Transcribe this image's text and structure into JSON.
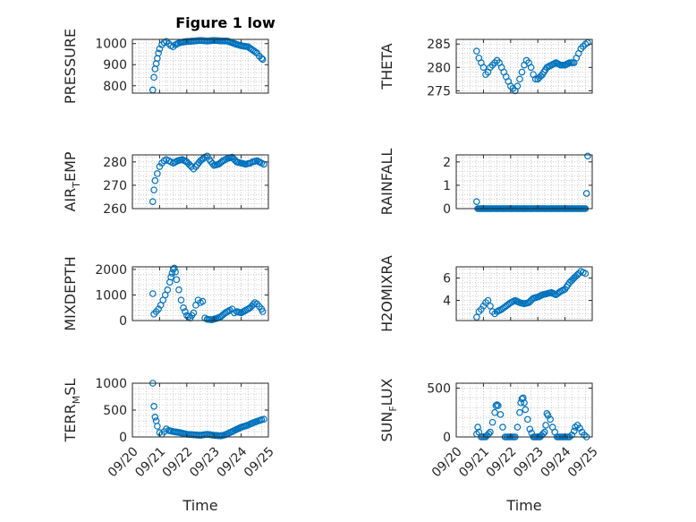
{
  "figure": {
    "title": "Figure 1 low"
  },
  "colors": {
    "marker": "#0072BD",
    "axis": "#262626",
    "grid": "#bfbfbf"
  },
  "chart_data": [
    {
      "type": "scatter",
      "xlabel": "",
      "ylabel": "PRESSURE",
      "ylim": [
        765,
        1020
      ],
      "yticks": [
        800,
        900,
        1000
      ],
      "xlim": [
        "09/20",
        "09/25"
      ],
      "grid": true,
      "points": [
        [
          "09/20 18:00",
          780
        ],
        [
          "09/20 19:00",
          840
        ],
        [
          "09/20 20:00",
          880
        ],
        [
          "09/20 21:00",
          905
        ],
        [
          "09/20 22:00",
          930
        ],
        [
          "09/20 23:00",
          955
        ],
        [
          "09/21 00:00",
          975
        ],
        [
          "09/21 02:00",
          995
        ],
        [
          "09/21 04:00",
          1005
        ],
        [
          "09/21 06:00",
          1010
        ],
        [
          "09/21 08:00",
          1000
        ],
        [
          "09/21 10:00",
          990
        ],
        [
          "09/21 12:00",
          985
        ],
        [
          "09/21 14:00",
          995
        ],
        [
          "09/21 18:00",
          1005
        ],
        [
          "09/22 00:00",
          1010
        ],
        [
          "09/22 06:00",
          1012
        ],
        [
          "09/22 12:00",
          1015
        ],
        [
          "09/22 18:00",
          1012
        ],
        [
          "09/23 00:00",
          1015
        ],
        [
          "09/23 06:00",
          1013
        ],
        [
          "09/23 12:00",
          1012
        ],
        [
          "09/23 18:00",
          1000
        ],
        [
          "09/24 00:00",
          990
        ],
        [
          "09/24 06:00",
          985
        ],
        [
          "09/24 10:00",
          970
        ],
        [
          "09/24 14:00",
          955
        ],
        [
          "09/24 16:00",
          940
        ],
        [
          "09/24 18:00",
          930
        ],
        [
          "09/24 19:00",
          925
        ]
      ]
    },
    {
      "type": "scatter",
      "xlabel": "",
      "ylabel": "THETA",
      "ylim": [
        274.5,
        286
      ],
      "yticks": [
        275,
        280,
        285
      ],
      "xlim": [
        "09/20",
        "09/25"
      ],
      "grid": true,
      "points": [
        [
          "09/20 18:00",
          283.5
        ],
        [
          "09/20 20:00",
          282
        ],
        [
          "09/20 22:00",
          281
        ],
        [
          "09/21 00:00",
          280
        ],
        [
          "09/21 02:00",
          278.5
        ],
        [
          "09/21 04:00",
          279
        ],
        [
          "09/21 06:00",
          280
        ],
        [
          "09/21 08:00",
          280.5
        ],
        [
          "09/21 10:00",
          281
        ],
        [
          "09/21 12:00",
          281.5
        ],
        [
          "09/21 14:00",
          281
        ],
        [
          "09/21 16:00",
          280
        ],
        [
          "09/21 18:00",
          279
        ],
        [
          "09/21 20:00",
          278
        ],
        [
          "09/21 22:00",
          277
        ],
        [
          "09/22 00:00",
          276
        ],
        [
          "09/22 02:00",
          275.5
        ],
        [
          "09/22 04:00",
          275
        ],
        [
          "09/22 06:00",
          276
        ],
        [
          "09/22 08:00",
          277.5
        ],
        [
          "09/22 10:00",
          279
        ],
        [
          "09/22 12:00",
          280.5
        ],
        [
          "09/22 14:00",
          281.5
        ],
        [
          "09/22 16:00",
          281
        ],
        [
          "09/22 18:00",
          280
        ],
        [
          "09/22 20:00",
          278.5
        ],
        [
          "09/22 22:00",
          277.5
        ],
        [
          "09/23 00:00",
          277.5
        ],
        [
          "09/23 04:00",
          278.5
        ],
        [
          "09/23 08:00",
          280
        ],
        [
          "09/23 12:00",
          280.5
        ],
        [
          "09/23 16:00",
          281
        ],
        [
          "09/23 20:00",
          280.5
        ],
        [
          "09/24 00:00",
          280.5
        ],
        [
          "09/24 04:00",
          281
        ],
        [
          "09/24 08:00",
          281
        ],
        [
          "09/24 10:00",
          282
        ],
        [
          "09/24 12:00",
          283
        ],
        [
          "09/24 14:00",
          284
        ],
        [
          "09/24 16:00",
          284.5
        ],
        [
          "09/24 18:00",
          285
        ],
        [
          "09/24 20:00",
          285.3
        ]
      ]
    },
    {
      "type": "scatter",
      "xlabel": "",
      "ylabel": "AIR_TEMP",
      "ylim": [
        260,
        283
      ],
      "yticks": [
        260,
        270,
        280
      ],
      "xlim": [
        "09/20",
        "09/25"
      ],
      "grid": true,
      "points": [
        [
          "09/20 18:00",
          263
        ],
        [
          "09/20 19:00",
          268
        ],
        [
          "09/20 20:00",
          272
        ],
        [
          "09/20 22:00",
          275
        ],
        [
          "09/21 00:00",
          278
        ],
        [
          "09/21 02:00",
          279.5
        ],
        [
          "09/21 04:00",
          280.5
        ],
        [
          "09/21 06:00",
          281
        ],
        [
          "09/21 08:00",
          280.5
        ],
        [
          "09/21 10:00",
          280
        ],
        [
          "09/21 12:00",
          279.5
        ],
        [
          "09/21 16:00",
          280.5
        ],
        [
          "09/21 20:00",
          281
        ],
        [
          "09/22 00:00",
          280
        ],
        [
          "09/22 04:00",
          278
        ],
        [
          "09/22 06:00",
          277
        ],
        [
          "09/22 08:00",
          278
        ],
        [
          "09/22 12:00",
          280.5
        ],
        [
          "09/22 16:00",
          282
        ],
        [
          "09/22 18:00",
          282.5
        ],
        [
          "09/22 20:00",
          281
        ],
        [
          "09/23 00:00",
          278.5
        ],
        [
          "09/23 04:00",
          279
        ],
        [
          "09/23 08:00",
          280.5
        ],
        [
          "09/23 12:00",
          281.5
        ],
        [
          "09/23 16:00",
          282
        ],
        [
          "09/23 20:00",
          280
        ],
        [
          "09/24 00:00",
          279.5
        ],
        [
          "09/24 04:00",
          279
        ],
        [
          "09/24 08:00",
          279.5
        ],
        [
          "09/24 10:00",
          280
        ],
        [
          "09/24 14:00",
          280.5
        ],
        [
          "09/24 18:00",
          279.5
        ],
        [
          "09/24 20:00",
          279
        ]
      ]
    },
    {
      "type": "scatter",
      "xlabel": "",
      "ylabel": "RAINFALL",
      "ylim": [
        0,
        2.3
      ],
      "yticks": [
        0,
        1,
        2
      ],
      "xlim": [
        "09/20",
        "09/25"
      ],
      "grid": true,
      "points": [
        [
          "09/20 18:00",
          0.3
        ],
        [
          "09/21 00:00",
          0
        ],
        [
          "09/21 06:00",
          0
        ],
        [
          "09/21 12:00",
          0
        ],
        [
          "09/21 18:00",
          0
        ],
        [
          "09/22 00:00",
          0
        ],
        [
          "09/22 06:00",
          0
        ],
        [
          "09/22 12:00",
          0
        ],
        [
          "09/22 18:00",
          0
        ],
        [
          "09/23 00:00",
          0
        ],
        [
          "09/23 06:00",
          0
        ],
        [
          "09/23 12:00",
          0
        ],
        [
          "09/23 18:00",
          0
        ],
        [
          "09/24 00:00",
          0
        ],
        [
          "09/24 06:00",
          0
        ],
        [
          "09/24 12:00",
          0
        ],
        [
          "09/24 18:00",
          0
        ],
        [
          "09/24 19:00",
          0.65
        ],
        [
          "09/24 20:00",
          2.25
        ]
      ],
      "dense_zero_run": [
        [
          "09/20 19:00"
        ],
        [
          "09/24 18:00"
        ]
      ]
    },
    {
      "type": "scatter",
      "xlabel": "",
      "ylabel": "MIXDEPTH",
      "ylim": [
        0,
        2100
      ],
      "yticks": [
        0,
        1000,
        2000
      ],
      "xlim": [
        "09/20",
        "09/25"
      ],
      "grid": true,
      "points": [
        [
          "09/20 18:00",
          1050
        ],
        [
          "09/20 19:00",
          250
        ],
        [
          "09/20 21:00",
          350
        ],
        [
          "09/20 23:00",
          450
        ],
        [
          "09/21 01:00",
          600
        ],
        [
          "09/21 03:00",
          800
        ],
        [
          "09/21 05:00",
          1000
        ],
        [
          "09/21 07:00",
          1200
        ],
        [
          "09/21 09:00",
          1500
        ],
        [
          "09/21 10:00",
          1700
        ],
        [
          "09/21 11:00",
          1850
        ],
        [
          "09/21 12:00",
          2000
        ],
        [
          "09/21 13:00",
          2050
        ],
        [
          "09/21 14:00",
          1900
        ],
        [
          "09/21 15:00",
          1600
        ],
        [
          "09/21 17:00",
          1200
        ],
        [
          "09/21 19:00",
          800
        ],
        [
          "09/21 21:00",
          500
        ],
        [
          "09/22 00:00",
          200
        ],
        [
          "09/22 03:00",
          100
        ],
        [
          "09/22 06:00",
          300
        ],
        [
          "09/22 08:00",
          600
        ],
        [
          "09/22 10:00",
          800
        ],
        [
          "09/22 12:00",
          700
        ],
        [
          "09/22 14:00",
          750
        ],
        [
          "09/22 16:00",
          100
        ],
        [
          "09/22 18:00",
          50
        ],
        [
          "09/22 22:00",
          30
        ],
        [
          "09/23 02:00",
          80
        ],
        [
          "09/23 06:00",
          150
        ],
        [
          "09/23 10:00",
          300
        ],
        [
          "09/23 14:00",
          400
        ],
        [
          "09/23 16:00",
          450
        ],
        [
          "09/23 18:00",
          300
        ],
        [
          "09/23 20:00",
          350
        ],
        [
          "09/24 00:00",
          300
        ],
        [
          "09/24 04:00",
          400
        ],
        [
          "09/24 08:00",
          500
        ],
        [
          "09/24 12:00",
          700
        ],
        [
          "09/24 14:00",
          650
        ],
        [
          "09/24 16:00",
          550
        ],
        [
          "09/24 18:00",
          450
        ],
        [
          "09/24 19:00",
          350
        ]
      ]
    },
    {
      "type": "scatter",
      "xlabel": "",
      "ylabel": "H2OMIXRA",
      "ylim": [
        2.2,
        7
      ],
      "yticks": [
        4,
        6
      ],
      "xlim": [
        "09/20",
        "09/25"
      ],
      "grid": true,
      "points": [
        [
          "09/20 18:00",
          2.5
        ],
        [
          "09/20 20:00",
          3
        ],
        [
          "09/20 22:00",
          3.2
        ],
        [
          "09/21 00:00",
          3.5
        ],
        [
          "09/21 02:00",
          3.8
        ],
        [
          "09/21 04:00",
          4
        ],
        [
          "09/21 06:00",
          3.5
        ],
        [
          "09/21 08:00",
          3
        ],
        [
          "09/21 10:00",
          2.8
        ],
        [
          "09/21 12:00",
          3
        ],
        [
          "09/21 16:00",
          3.2
        ],
        [
          "09/21 20:00",
          3.5
        ],
        [
          "09/22 00:00",
          3.8
        ],
        [
          "09/22 04:00",
          4
        ],
        [
          "09/22 08:00",
          3.8
        ],
        [
          "09/22 12:00",
          3.7
        ],
        [
          "09/22 16:00",
          3.8
        ],
        [
          "09/22 20:00",
          4.2
        ],
        [
          "09/23 00:00",
          4.3
        ],
        [
          "09/23 04:00",
          4.5
        ],
        [
          "09/23 08:00",
          4.6
        ],
        [
          "09/23 12:00",
          4.7
        ],
        [
          "09/23 16:00",
          4.5
        ],
        [
          "09/23 20:00",
          4.8
        ],
        [
          "09/24 00:00",
          5
        ],
        [
          "09/24 04:00",
          5.6
        ],
        [
          "09/24 08:00",
          6
        ],
        [
          "09/24 12:00",
          6.4
        ],
        [
          "09/24 14:00",
          6.6
        ],
        [
          "09/24 16:00",
          6.5
        ],
        [
          "09/24 18:00",
          6.4
        ]
      ]
    },
    {
      "type": "scatter",
      "xlabel": "Time",
      "ylabel": "TERR_MSL",
      "ylim": [
        0,
        1000
      ],
      "yticks": [
        0,
        500,
        1000
      ],
      "xlim": [
        "09/20",
        "09/25"
      ],
      "xticks": [
        "09/20",
        "09/21",
        "09/22",
        "09/23",
        "09/24",
        "09/25"
      ],
      "grid": true,
      "points": [
        [
          "09/20 18:00",
          1000
        ],
        [
          "09/20 19:00",
          570
        ],
        [
          "09/20 20:00",
          370
        ],
        [
          "09/20 21:00",
          300
        ],
        [
          "09/20 22:00",
          200
        ],
        [
          "09/21 00:00",
          80
        ],
        [
          "09/21 02:00",
          50
        ],
        [
          "09/21 04:00",
          100
        ],
        [
          "09/21 06:00",
          150
        ],
        [
          "09/21 08:00",
          120
        ],
        [
          "09/21 12:00",
          100
        ],
        [
          "09/21 18:00",
          80
        ],
        [
          "09/22 00:00",
          50
        ],
        [
          "09/22 06:00",
          40
        ],
        [
          "09/22 12:00",
          30
        ],
        [
          "09/22 18:00",
          50
        ],
        [
          "09/23 00:00",
          30
        ],
        [
          "09/23 06:00",
          20
        ],
        [
          "09/23 10:00",
          40
        ],
        [
          "09/23 14:00",
          80
        ],
        [
          "09/23 18:00",
          120
        ],
        [
          "09/24 00:00",
          180
        ],
        [
          "09/24 06:00",
          220
        ],
        [
          "09/24 10:00",
          260
        ],
        [
          "09/24 14:00",
          290
        ],
        [
          "09/24 18:00",
          320
        ],
        [
          "09/24 20:00",
          330
        ]
      ]
    },
    {
      "type": "scatter",
      "xlabel": "Time",
      "ylabel": "SUN_FLUX",
      "ylim": [
        0,
        550
      ],
      "yticks": [
        0,
        500
      ],
      "xlim": [
        "09/20",
        "09/25"
      ],
      "xticks": [
        "09/20",
        "09/21",
        "09/22",
        "09/23",
        "09/24",
        "09/25"
      ],
      "grid": true,
      "points": [
        [
          "09/20 18:00",
          30
        ],
        [
          "09/20 19:00",
          100
        ],
        [
          "09/20 20:00",
          50
        ],
        [
          "09/20 22:00",
          0
        ],
        [
          "09/21 02:00",
          0
        ],
        [
          "09/21 06:00",
          50
        ],
        [
          "09/21 08:00",
          150
        ],
        [
          "09/21 10:00",
          250
        ],
        [
          "09/21 11:00",
          320
        ],
        [
          "09/21 12:00",
          330
        ],
        [
          "09/21 13:00",
          320
        ],
        [
          "09/21 15:00",
          230
        ],
        [
          "09/21 17:00",
          100
        ],
        [
          "09/21 19:00",
          0
        ],
        [
          "09/22 00:00",
          0
        ],
        [
          "09/22 04:00",
          0
        ],
        [
          "09/22 06:00",
          100
        ],
        [
          "09/22 08:00",
          250
        ],
        [
          "09/22 09:00",
          350
        ],
        [
          "09/22 10:00",
          390
        ],
        [
          "09/22 11:00",
          400
        ],
        [
          "09/22 12:00",
          350
        ],
        [
          "09/22 13:00",
          280
        ],
        [
          "09/22 15:00",
          180
        ],
        [
          "09/22 17:00",
          80
        ],
        [
          "09/22 20:00",
          0
        ],
        [
          "09/23 02:00",
          0
        ],
        [
          "09/23 06:00",
          50
        ],
        [
          "09/23 07:00",
          120
        ],
        [
          "09/23 08:00",
          240
        ],
        [
          "09/23 09:00",
          220
        ],
        [
          "09/23 11:00",
          180
        ],
        [
          "09/23 13:00",
          100
        ],
        [
          "09/23 15:00",
          50
        ],
        [
          "09/23 17:00",
          0
        ],
        [
          "09/24 00:00",
          0
        ],
        [
          "09/24 04:00",
          0
        ],
        [
          "09/24 06:00",
          20
        ],
        [
          "09/24 08:00",
          60
        ],
        [
          "09/24 09:00",
          100
        ],
        [
          "09/24 11:00",
          120
        ],
        [
          "09/24 13:00",
          90
        ],
        [
          "09/24 15:00",
          50
        ],
        [
          "09/24 17:00",
          20
        ],
        [
          "09/24 19:00",
          0
        ]
      ]
    }
  ]
}
